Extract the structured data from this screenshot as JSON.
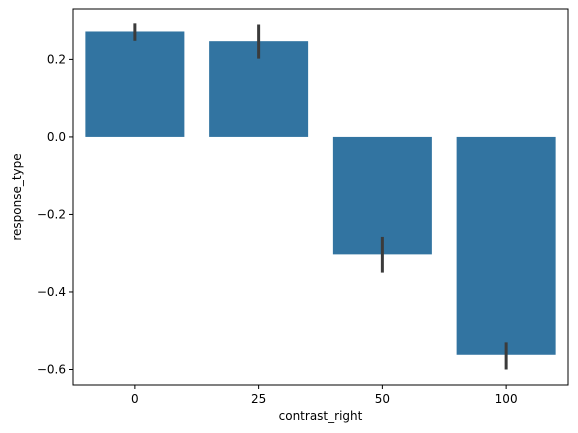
{
  "chart_data": {
    "type": "bar",
    "categories": [
      "0",
      "25",
      "50",
      "100"
    ],
    "values": [
      0.272,
      0.247,
      -0.303,
      -0.562
    ],
    "error_low": [
      0.248,
      0.202,
      -0.35,
      -0.6
    ],
    "error_high": [
      0.293,
      0.29,
      -0.258,
      -0.53
    ],
    "xlabel": "contrast_right",
    "ylabel": "response_type",
    "ylim": [
      -0.64,
      0.33
    ],
    "yticks": [
      0.2,
      0.0,
      -0.2,
      -0.4,
      -0.6
    ],
    "ytick_labels": [
      "0.2",
      "0.0",
      "−0.2",
      "−0.4",
      "−0.6"
    ],
    "grid": false,
    "bar_color": "#3274a1",
    "error_color": "#3b3b3b"
  }
}
